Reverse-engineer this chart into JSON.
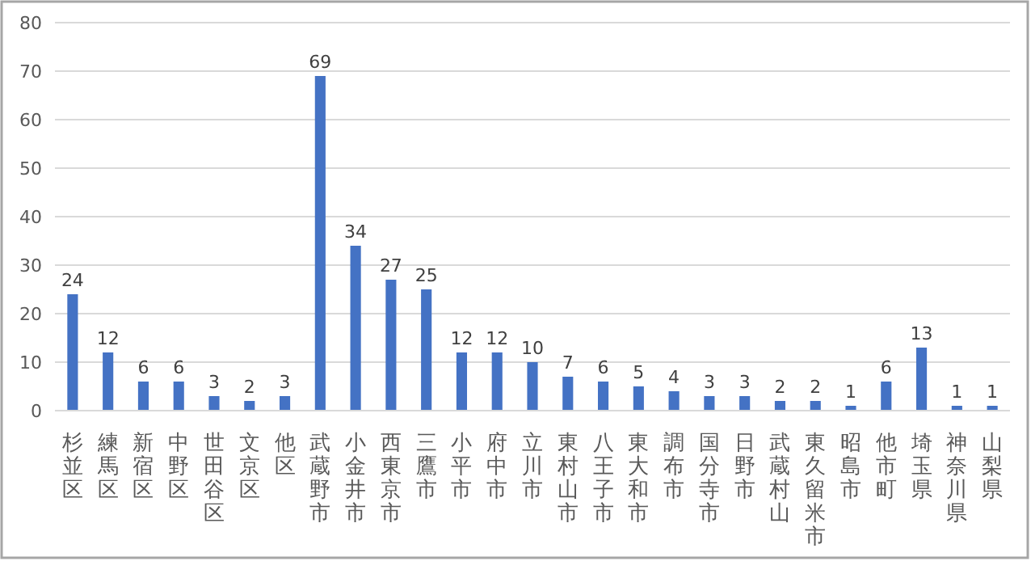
{
  "chart_data": {
    "type": "bar",
    "categories": [
      "杉並区",
      "練馬区",
      "新宿区",
      "中野区",
      "世田谷区",
      "文京区",
      "他区",
      "武蔵野市",
      "小金井市",
      "西東京市",
      "三鷹市",
      "小平市",
      "府中市",
      "立川市",
      "東村山市",
      "八王子市",
      "東大和市",
      "調布市",
      "国分寺市",
      "日野市",
      "武蔵村山",
      "東久留米市",
      "昭島市",
      "他市町",
      "埼玉県",
      "神奈川県",
      "山梨県"
    ],
    "values": [
      24,
      12,
      6,
      6,
      3,
      2,
      3,
      69,
      34,
      27,
      25,
      12,
      12,
      10,
      7,
      6,
      5,
      4,
      3,
      3,
      2,
      2,
      1,
      6,
      13,
      1,
      1
    ],
    "color": "#4472c4",
    "ylim": [
      0,
      80
    ],
    "yticks": [
      0,
      10,
      20,
      30,
      40,
      50,
      60,
      70,
      80
    ],
    "grid": "y",
    "data_labels": true
  }
}
